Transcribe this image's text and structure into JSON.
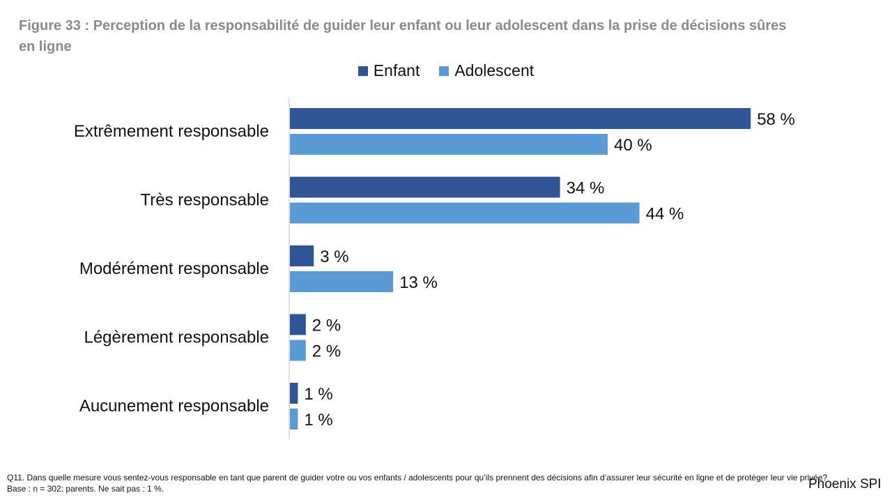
{
  "title": "Figure 33 : Perception de la responsabilité de guider leur enfant ou leur adolescent dans la prise de décisions sûres en ligne",
  "footnote": "Q11. Dans quelle mesure vous sentez-vous responsable en tant que parent de guider votre ou vos enfants / adolescents pour qu’ils prennent des décisions afin d’assurer leur sécurité en ligne et de protéger leur vie privée? Base : n = 302; parents. Ne sait pas : 1 %.",
  "brand": "Phoenix SPI",
  "chart_data": {
    "type": "bar",
    "orientation": "horizontal",
    "categories": [
      "Extrêmement responsable",
      "Très responsable",
      "Modérément responsable",
      "Légèrement responsable",
      "Aucunement responsable"
    ],
    "series": [
      {
        "name": "Enfant",
        "color": "#2f5597",
        "values": [
          58,
          34,
          3,
          2,
          1
        ],
        "labels": [
          "58 %",
          "34 %",
          "3 %",
          "2 %",
          "1 %"
        ]
      },
      {
        "name": "Adolescent",
        "color": "#5b9bd5",
        "values": [
          40,
          44,
          13,
          2,
          1
        ],
        "labels": [
          "40 %",
          "44 %",
          "13 %",
          "2 %",
          "1 %"
        ]
      }
    ],
    "xlim": [
      0,
      100
    ],
    "legend_position": "top",
    "grid": false
  }
}
